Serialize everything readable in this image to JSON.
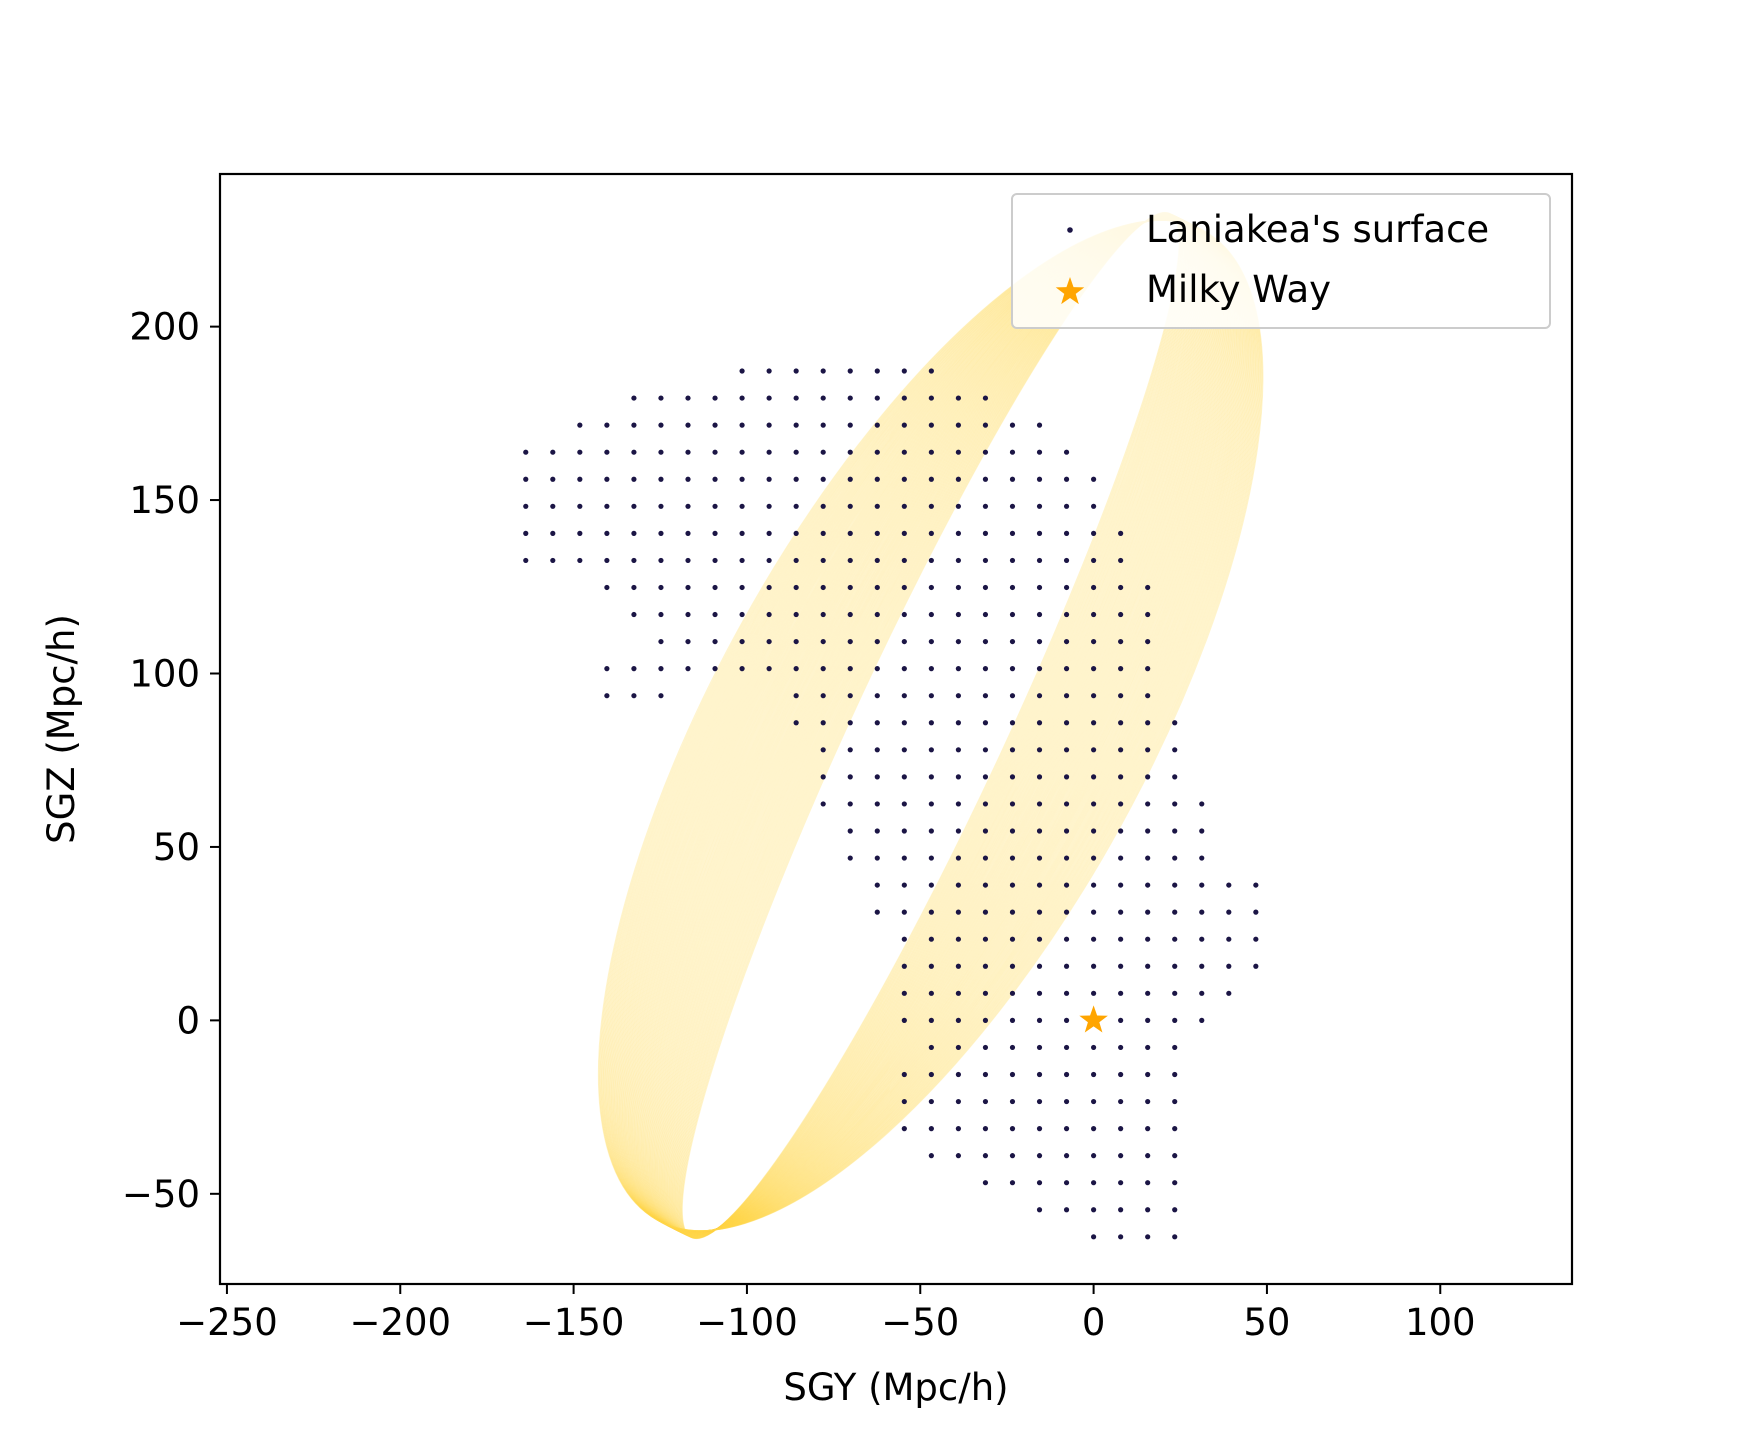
{
  "chart_data": {
    "type": "scatter",
    "xlabel": "SGY (Mpc/h)",
    "ylabel": "SGZ (Mpc/h)",
    "xlim": [
      -252,
      138
    ],
    "ylim": [
      -76,
      244
    ],
    "xticks": [
      -250,
      -200,
      -150,
      -100,
      -50,
      0,
      50,
      100
    ],
    "yticks": [
      -50,
      0,
      50,
      100,
      150,
      200
    ],
    "xtick_labels": [
      "−250",
      "−200",
      "−150",
      "−100",
      "−50",
      "0",
      "50",
      "100"
    ],
    "ytick_labels": [
      "−50",
      "0",
      "50",
      "100",
      "150",
      "200"
    ],
    "grid": false,
    "legend_position": "top-right",
    "series": [
      {
        "name": "Laniakea's surface",
        "marker": "dot",
        "color": "#1b1545",
        "grid_step": 7.8,
        "rows": [
          {
            "y": 187.2,
            "x_ranges": [
              [
                -101.4,
                -46.8
              ]
            ]
          },
          {
            "y": 179.4,
            "x_ranges": [
              [
                -132.6,
                -31.2
              ]
            ]
          },
          {
            "y": 171.6,
            "x_ranges": [
              [
                -148.2,
                -15.6
              ]
            ]
          },
          {
            "y": 163.8,
            "x_ranges": [
              [
                -163.8,
                -7.8
              ]
            ]
          },
          {
            "y": 156.0,
            "x_ranges": [
              [
                -163.8,
                0.0
              ]
            ]
          },
          {
            "y": 148.2,
            "x_ranges": [
              [
                -163.8,
                0.0
              ]
            ]
          },
          {
            "y": 140.4,
            "x_ranges": [
              [
                -163.8,
                7.8
              ]
            ]
          },
          {
            "y": 132.6,
            "x_ranges": [
              [
                -163.8,
                -148.2
              ],
              [
                -140.4,
                7.8
              ]
            ]
          },
          {
            "y": 124.8,
            "x_ranges": [
              [
                -140.4,
                15.6
              ]
            ]
          },
          {
            "y": 117.0,
            "x_ranges": [
              [
                -132.6,
                15.6
              ]
            ]
          },
          {
            "y": 109.2,
            "x_ranges": [
              [
                -124.8,
                15.6
              ]
            ]
          },
          {
            "y": 101.4,
            "x_ranges": [
              [
                -140.4,
                15.6
              ]
            ]
          },
          {
            "y": 93.6,
            "x_ranges": [
              [
                -140.4,
                -124.8
              ],
              [
                -85.8,
                15.6
              ]
            ]
          },
          {
            "y": 85.8,
            "x_ranges": [
              [
                -85.8,
                23.4
              ]
            ]
          },
          {
            "y": 78.0,
            "x_ranges": [
              [
                -78.0,
                23.4
              ]
            ]
          },
          {
            "y": 70.2,
            "x_ranges": [
              [
                -78.0,
                23.4
              ]
            ]
          },
          {
            "y": 62.4,
            "x_ranges": [
              [
                -78.0,
                31.2
              ]
            ]
          },
          {
            "y": 54.6,
            "x_ranges": [
              [
                -70.2,
                31.2
              ]
            ]
          },
          {
            "y": 46.8,
            "x_ranges": [
              [
                -70.2,
                31.2
              ]
            ]
          },
          {
            "y": 39.0,
            "x_ranges": [
              [
                -62.4,
                46.8
              ]
            ]
          },
          {
            "y": 31.2,
            "x_ranges": [
              [
                -62.4,
                46.8
              ]
            ]
          },
          {
            "y": 23.4,
            "x_ranges": [
              [
                -54.6,
                46.8
              ]
            ]
          },
          {
            "y": 15.6,
            "x_ranges": [
              [
                -54.6,
                46.8
              ]
            ]
          },
          {
            "y": 7.8,
            "x_ranges": [
              [
                -54.6,
                39.0
              ]
            ]
          },
          {
            "y": 0.0,
            "x_ranges": [
              [
                -54.6,
                31.2
              ]
            ]
          },
          {
            "y": -7.8,
            "x_ranges": [
              [
                -46.8,
                23.4
              ]
            ]
          },
          {
            "y": -15.6,
            "x_ranges": [
              [
                -54.6,
                23.4
              ]
            ]
          },
          {
            "y": -23.4,
            "x_ranges": [
              [
                -54.6,
                23.4
              ]
            ]
          },
          {
            "y": -31.2,
            "x_ranges": [
              [
                -54.6,
                23.4
              ]
            ]
          },
          {
            "y": -39.0,
            "x_ranges": [
              [
                -46.8,
                23.4
              ]
            ]
          },
          {
            "y": -46.8,
            "x_ranges": [
              [
                -31.2,
                23.4
              ]
            ]
          },
          {
            "y": -54.6,
            "x_ranges": [
              [
                -15.6,
                23.4
              ]
            ]
          },
          {
            "y": -62.4,
            "x_ranges": [
              [
                0.0,
                23.4
              ]
            ]
          }
        ]
      },
      {
        "name": "Milky Way",
        "marker": "star",
        "color": "#ffa500",
        "points": [
          {
            "x": 0,
            "y": 0
          }
        ]
      }
    ],
    "ellipsoid_projection": {
      "color": "#ffd84a",
      "center": [
        -47,
        85
      ],
      "semi_major": 163,
      "semi_minor": 62,
      "tilt_deg": -63,
      "ring_count": 150
    }
  }
}
